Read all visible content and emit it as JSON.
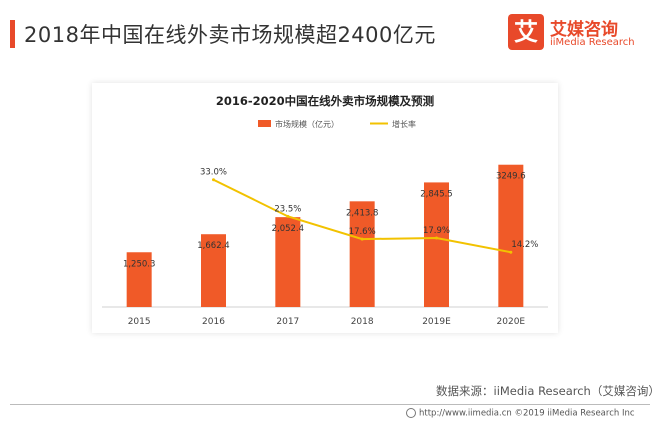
{
  "header": {
    "title": "2018年中国在线外卖市场规模超2400亿元"
  },
  "logo": {
    "glyph": "艾",
    "name": "艾媒咨询",
    "sub": "iiMedia Research"
  },
  "chart_data": {
    "type": "bar+line",
    "title": "2016-2020中国在线外卖市场规模及预测",
    "categories": [
      "2015",
      "2016",
      "2017",
      "2018",
      "2019E",
      "2020E"
    ],
    "legend_position": "top",
    "series": [
      {
        "name": "市场规模（亿元）",
        "type": "bar",
        "axis": "left",
        "color": "#f05a28",
        "values": [
          1250.3,
          1662.4,
          2052.4,
          2413.8,
          2845.5,
          3249.6
        ],
        "labels": [
          "1,250.3",
          "1,662.4",
          "2,052.4",
          "2,413.8",
          "2,845.5",
          "3249.6"
        ]
      },
      {
        "name": "增长率",
        "type": "line",
        "axis": "right",
        "color": "#f2c200",
        "values": [
          null,
          33.0,
          23.5,
          17.6,
          17.9,
          14.2
        ],
        "labels": [
          "",
          "33.0%",
          "23.5%",
          "17.6%",
          "17.9%",
          "14.2%"
        ]
      }
    ],
    "ylim": [
      0,
      3700
    ],
    "y2lim": [
      0,
      42
    ],
    "grid": false
  },
  "source": "数据来源：iiMedia Research（艾媒咨询）",
  "footer": "http://www.iimedia.cn  ©2019  iiMedia Research  Inc"
}
